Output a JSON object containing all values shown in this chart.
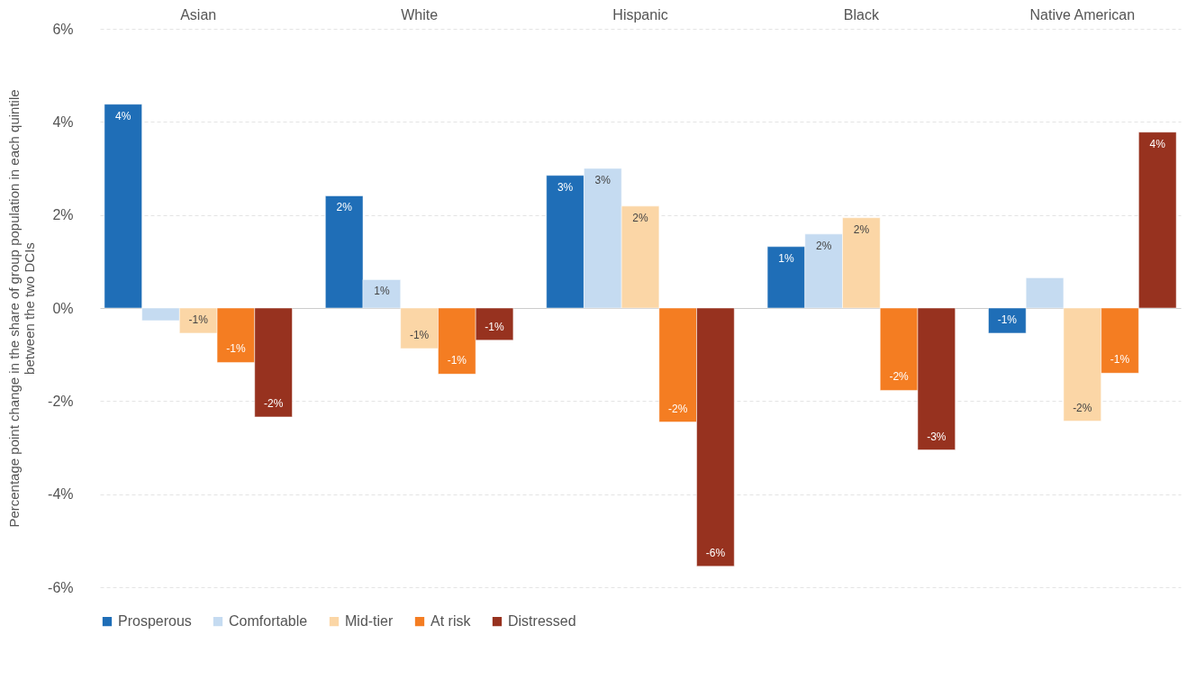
{
  "chart_data": {
    "type": "bar",
    "ylabel": "Percentage point change in the share of  group population in each quintile\nbetween the two DCIs",
    "categories": [
      "Asian",
      "White",
      "Hispanic",
      "Black",
      "Native American"
    ],
    "series": [
      {
        "name": "Prosperous",
        "color": "#1f6eb7",
        "values": [
          4.38,
          2.41,
          2.85,
          1.32,
          -0.54
        ],
        "value_labels": [
          "4%",
          "2%",
          "3%",
          "1%",
          "-1%"
        ]
      },
      {
        "name": "Comfortable",
        "color": "#c5dbf1",
        "values": [
          -0.27,
          0.61,
          3.0,
          1.59,
          0.65
        ],
        "value_labels": [
          null,
          "1%",
          "3%",
          "2%",
          null
        ]
      },
      {
        "name": "Mid-tier",
        "color": "#fbd6a6",
        "values": [
          -0.54,
          -0.87,
          2.19,
          1.94,
          -2.43
        ],
        "value_labels": [
          "-1%",
          "-1%",
          "2%",
          "2%",
          "-2%"
        ]
      },
      {
        "name": "At risk",
        "color": "#f47d22",
        "values": [
          -1.17,
          -1.42,
          -2.45,
          -1.77,
          -1.4
        ],
        "value_labels": [
          "-1%",
          "-1%",
          "-2%",
          "-2%",
          "-1%"
        ]
      },
      {
        "name": "Distressed",
        "color": "#97321f",
        "values": [
          -2.34,
          -0.69,
          -5.55,
          -3.05,
          3.78
        ],
        "value_labels": [
          "-2%",
          "-1%",
          "-6%",
          "-3%",
          "4%"
        ]
      }
    ],
    "ylim": [
      -6,
      6
    ],
    "yticks": [
      {
        "value": -6,
        "label": "-6%"
      },
      {
        "value": -4,
        "label": "-4%"
      },
      {
        "value": -2,
        "label": "-2%"
      },
      {
        "value": 0,
        "label": "0%"
      },
      {
        "value": 2,
        "label": "2%"
      },
      {
        "value": 4,
        "label": "4%"
      },
      {
        "value": 6,
        "label": "6%"
      }
    ],
    "grid": "y",
    "legend": "bottom"
  }
}
